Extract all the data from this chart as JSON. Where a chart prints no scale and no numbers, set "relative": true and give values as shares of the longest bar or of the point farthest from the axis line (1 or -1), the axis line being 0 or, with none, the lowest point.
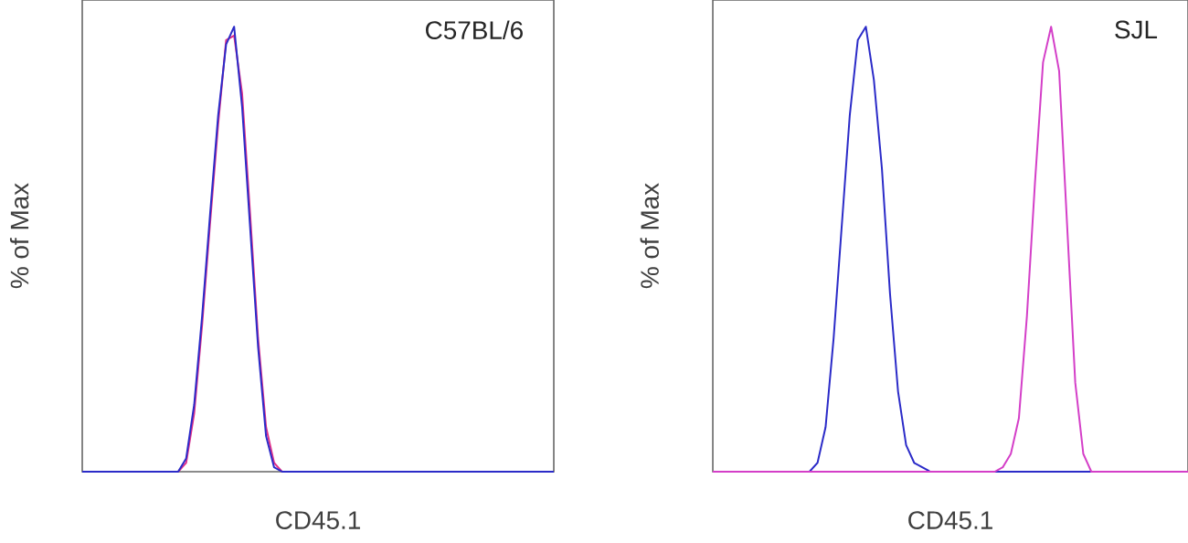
{
  "chart_data": [
    {
      "type": "line",
      "relative": true,
      "xlabel": "CD45.1",
      "ylabel": "% of Max",
      "annotations": [
        "C57BL/6"
      ],
      "categories": [
        null,
        null,
        null,
        null,
        null,
        null,
        null,
        null,
        null,
        null,
        null,
        null,
        null,
        null,
        null,
        null,
        null,
        null,
        null,
        null,
        null,
        null,
        null,
        null,
        null,
        null,
        null,
        null,
        null,
        null,
        null,
        null,
        null,
        null,
        null,
        null,
        null,
        null,
        null,
        null,
        null,
        null,
        null,
        null,
        null,
        null,
        null,
        null,
        null,
        null,
        null,
        null,
        null,
        null,
        null,
        null,
        null,
        null,
        null,
        null
      ],
      "series": [
        {
          "color": "#e0308a",
          "values": [
            null,
            null,
            null,
            null,
            null,
            null,
            null,
            null,
            null,
            null,
            null,
            null,
            0,
            0.02,
            0.13,
            0.33,
            0.56,
            0.78,
            0.97,
            0.98,
            0.85,
            0.58,
            0.3,
            0.1,
            0.02,
            0,
            null,
            null,
            null,
            null,
            null,
            null,
            null,
            null,
            null,
            null,
            null,
            null,
            null,
            null,
            null,
            null,
            null,
            null,
            null,
            null,
            null,
            null,
            null,
            null,
            null,
            null,
            null,
            null,
            null,
            null,
            null,
            null,
            null,
            null
          ]
        },
        {
          "color": "#2b2bc8",
          "values": [
            0,
            0,
            0,
            0,
            0,
            0,
            0,
            0,
            0,
            0,
            0,
            0,
            0,
            0.03,
            0.15,
            0.35,
            0.58,
            0.8,
            0.96,
            1,
            0.82,
            0.55,
            0.28,
            0.08,
            0.01,
            0,
            0,
            0,
            0,
            0,
            0,
            0,
            0,
            0,
            0,
            0,
            0,
            0,
            0,
            0,
            0,
            0,
            0,
            0,
            0,
            0,
            0,
            0,
            0,
            0,
            0,
            0,
            0,
            0,
            0,
            0,
            0,
            0,
            0,
            0
          ]
        }
      ]
    },
    {
      "type": "line",
      "relative": true,
      "xlabel": "CD45.1",
      "ylabel": "% of Max",
      "annotations": [
        "SJL"
      ],
      "categories": [
        null,
        null,
        null,
        null,
        null,
        null,
        null,
        null,
        null,
        null,
        null,
        null,
        null,
        null,
        null,
        null,
        null,
        null,
        null,
        null,
        null,
        null,
        null,
        null,
        null,
        null,
        null,
        null,
        null,
        null,
        null,
        null,
        null,
        null,
        null,
        null,
        null,
        null,
        null,
        null,
        null,
        null,
        null,
        null,
        null,
        null,
        null,
        null,
        null,
        null,
        null,
        null,
        null,
        null,
        null,
        null,
        null,
        null,
        null,
        null
      ],
      "series": [
        {
          "color": "#2b2bc8",
          "values": [
            null,
            null,
            null,
            null,
            null,
            null,
            null,
            null,
            null,
            null,
            null,
            null,
            0,
            0.02,
            0.1,
            0.3,
            0.55,
            0.8,
            0.97,
            1,
            0.88,
            0.68,
            0.4,
            0.18,
            0.06,
            0.02,
            0.01,
            0,
            null,
            null,
            null,
            null,
            null,
            null,
            null,
            0,
            0,
            0,
            0,
            0,
            0,
            0,
            0,
            0,
            0,
            0,
            0,
            0,
            null,
            null,
            null,
            null,
            null,
            null,
            null,
            null,
            null,
            null,
            null,
            null
          ]
        },
        {
          "color": "#d43fc8",
          "values": [
            0,
            0,
            0,
            0,
            0,
            0,
            0,
            0,
            0,
            0,
            0,
            0,
            0,
            0,
            0,
            0,
            0,
            0,
            0,
            0,
            0,
            0,
            0,
            0,
            0,
            0,
            0,
            0,
            0,
            0,
            0,
            0,
            0,
            0,
            0,
            0,
            0.01,
            0.04,
            0.12,
            0.35,
            0.65,
            0.92,
            1,
            0.9,
            0.55,
            0.2,
            0.04,
            0,
            0,
            0,
            0,
            0,
            0,
            0,
            0,
            0,
            0,
            0,
            0,
            0
          ]
        }
      ]
    }
  ]
}
